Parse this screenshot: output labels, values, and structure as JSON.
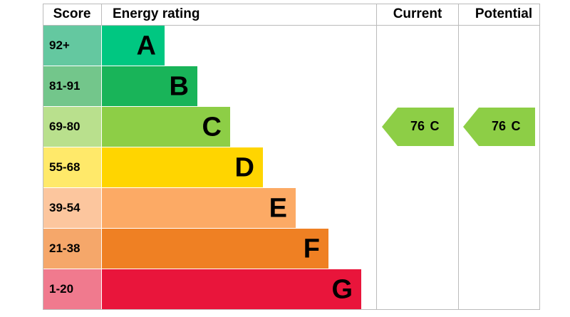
{
  "header": {
    "score": "Score",
    "energy_rating": "Energy rating",
    "current": "Current",
    "potential": "Potential"
  },
  "rows": [
    {
      "score": "92+",
      "letter": "A",
      "color": "#00c781",
      "score_color": "#64c8a0"
    },
    {
      "score": "81-91",
      "letter": "B",
      "color": "#19b459",
      "score_color": "#73c68b"
    },
    {
      "score": "69-80",
      "letter": "C",
      "color": "#8dce46",
      "score_color": "#b9e08d"
    },
    {
      "score": "55-68",
      "letter": "D",
      "color": "#ffd500",
      "score_color": "#ffe96a"
    },
    {
      "score": "39-54",
      "letter": "E",
      "color": "#fcaa65",
      "score_color": "#fcc69e"
    },
    {
      "score": "21-38",
      "letter": "F",
      "color": "#ef8023",
      "score_color": "#f5a76a"
    },
    {
      "score": "1-20",
      "letter": "G",
      "color": "#e9153b",
      "score_color": "#f07a8e"
    }
  ],
  "current": {
    "score": 76,
    "rating": "C"
  },
  "potential": {
    "score": 76,
    "rating": "C"
  }
}
